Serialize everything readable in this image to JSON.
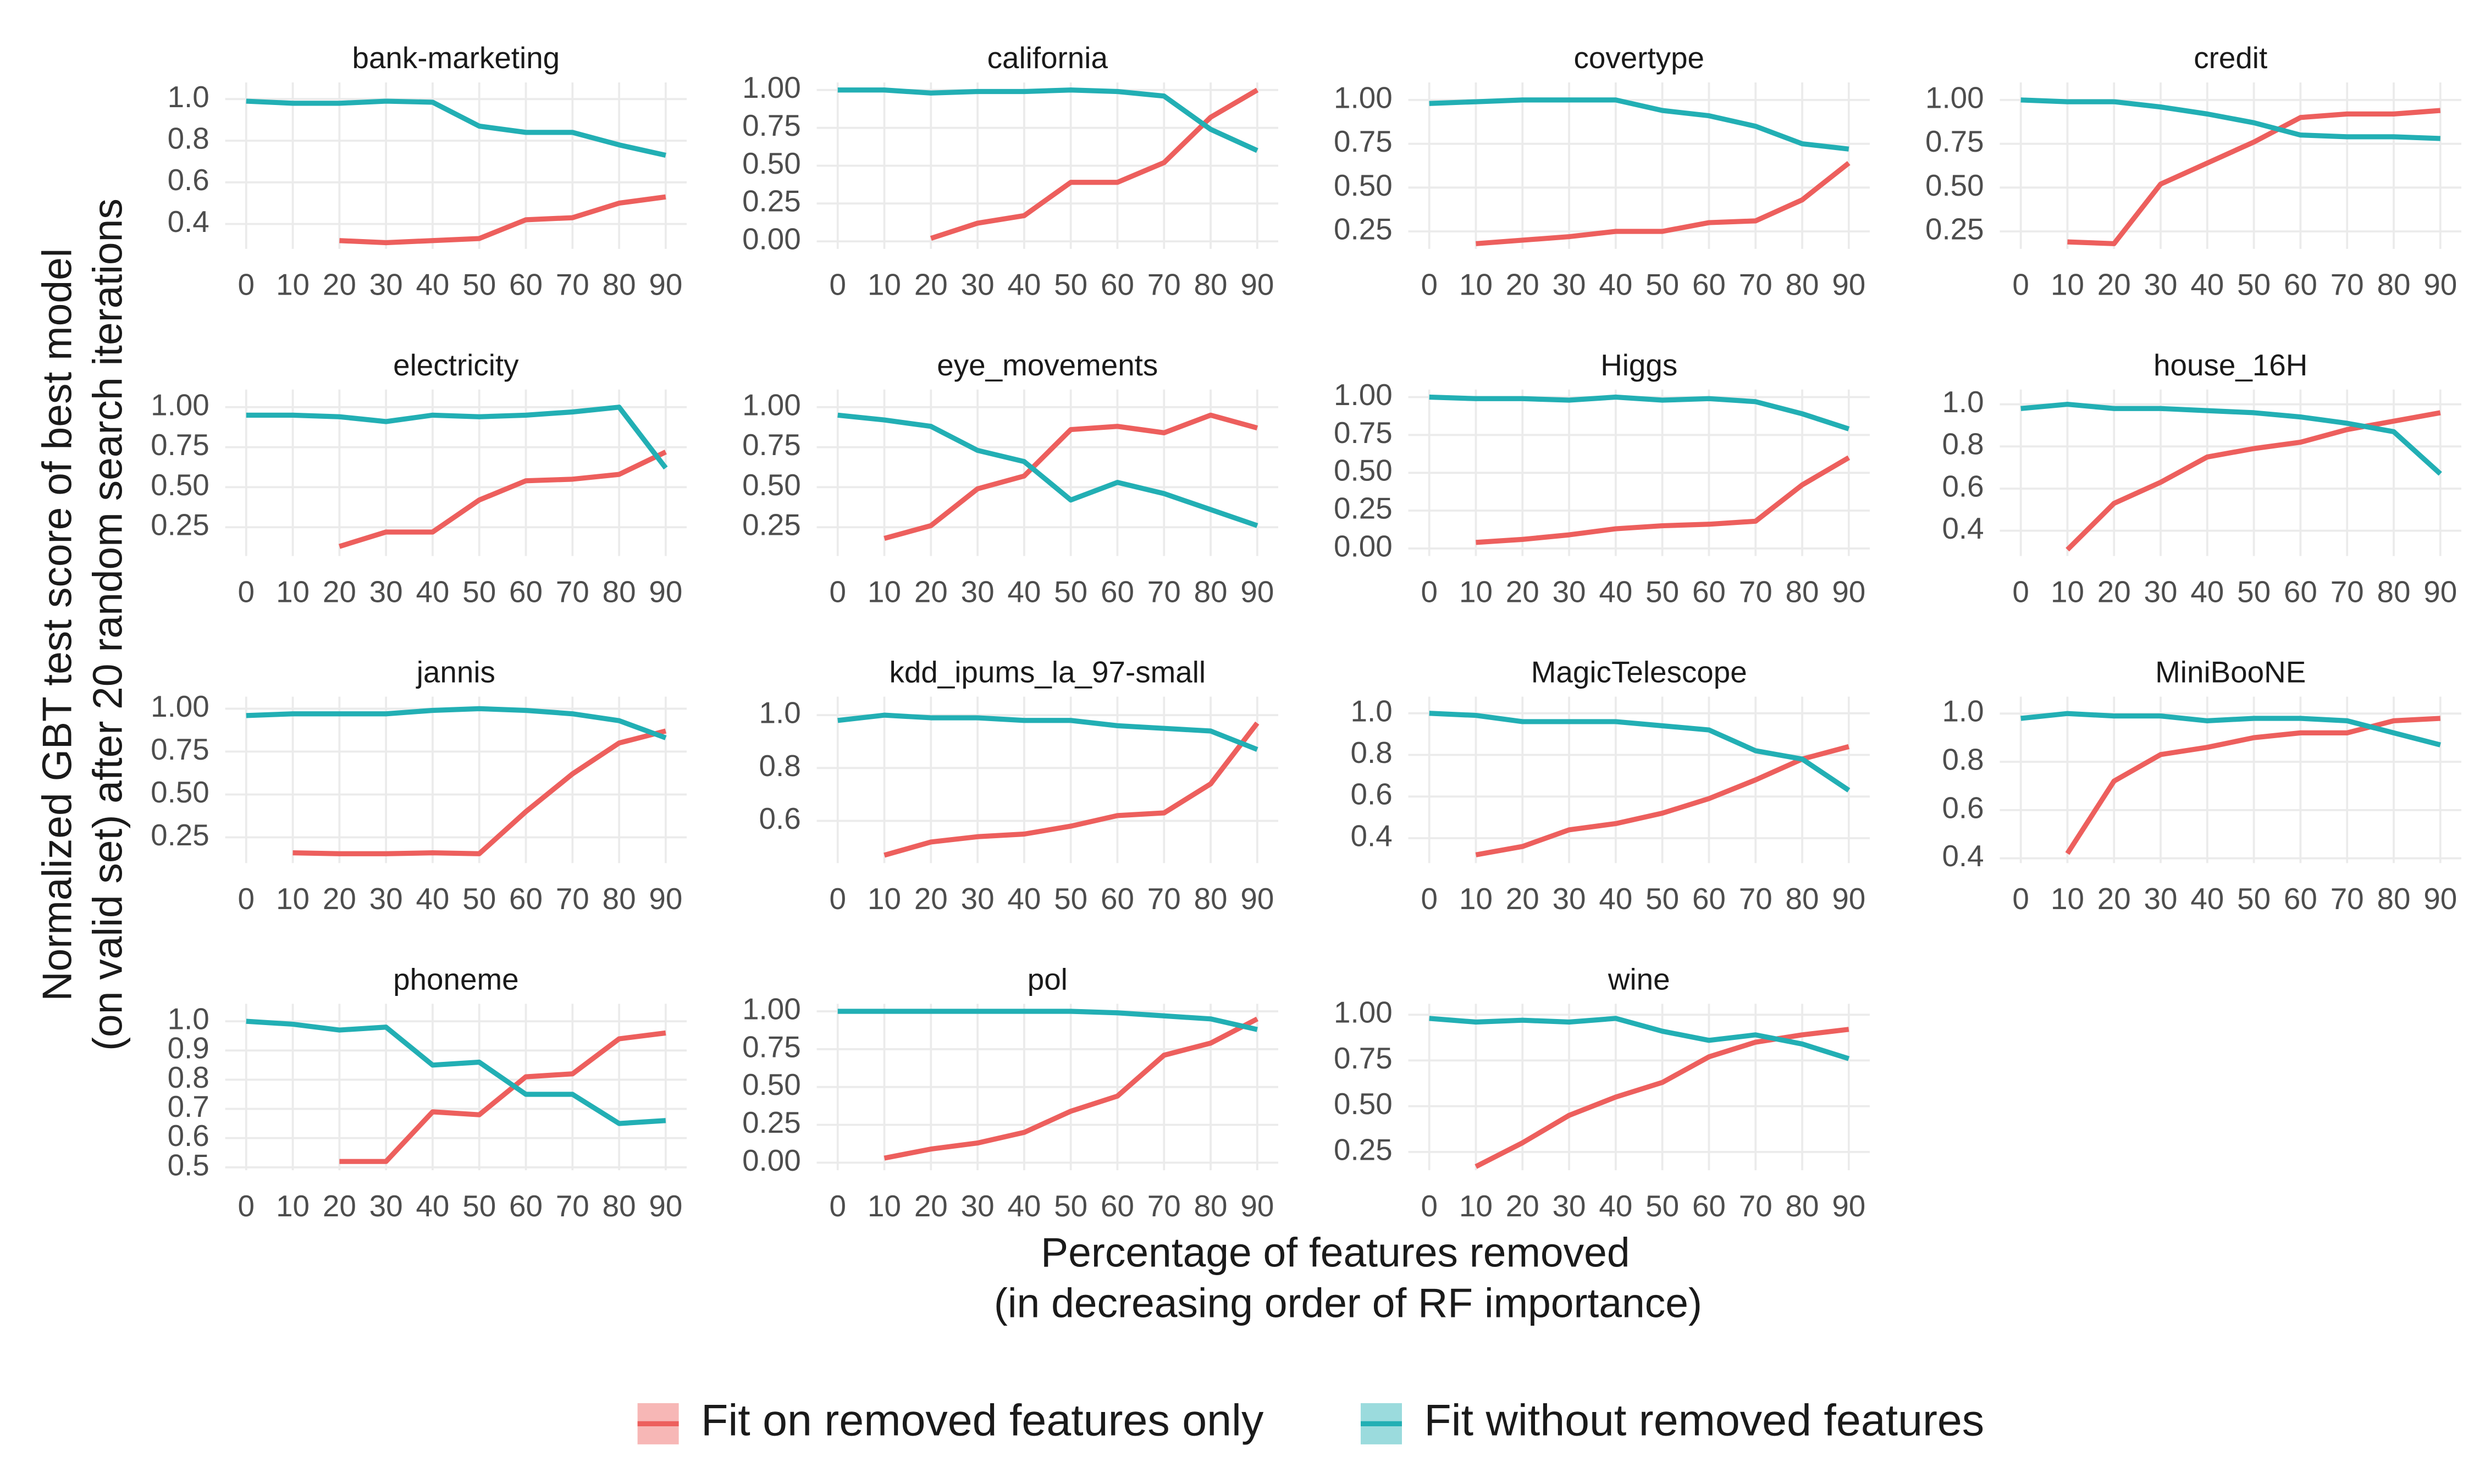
{
  "ylabel": [
    "Normalized GBT test score of best model",
    "(on valid set) after 20 random search iterations"
  ],
  "xlabel": [
    "Percentage of features removed",
    "(in decreasing order of RF importance)"
  ],
  "chart_data": [
    {
      "type": "line",
      "title": "bank-marketing",
      "x": [
        0,
        10,
        20,
        30,
        40,
        50,
        60,
        70,
        80,
        90
      ],
      "xlim": [
        -4.5,
        94.5
      ],
      "xticks": [
        0,
        10,
        20,
        30,
        40,
        50,
        60,
        70,
        80,
        90
      ],
      "ylim": [
        0.28,
        1.08
      ],
      "yticks": [
        0.4,
        0.6,
        0.8,
        {
          "value": 1.0,
          "label": "1.0"
        }
      ],
      "series": [
        {
          "name": "Fit on removed features only",
          "color": "#ED5F5D",
          "values": [
            null,
            null,
            0.32,
            0.31,
            0.32,
            0.33,
            0.42,
            0.43,
            0.5,
            0.53
          ]
        },
        {
          "name": "Fit without removed features",
          "color": "#22AFB4",
          "values": [
            0.99,
            0.98,
            0.98,
            0.99,
            0.985,
            0.87,
            0.84,
            0.84,
            0.78,
            0.73
          ]
        }
      ]
    },
    {
      "type": "line",
      "title": "california",
      "x": [
        0,
        10,
        20,
        30,
        40,
        50,
        60,
        70,
        80,
        90
      ],
      "xlim": [
        -4.5,
        94.5
      ],
      "xticks": [
        0,
        10,
        20,
        30,
        40,
        50,
        60,
        70,
        80,
        90
      ],
      "ylim": [
        -0.05,
        1.05
      ],
      "yticks": [
        {
          "value": 0,
          "label": "0.00"
        },
        0.25,
        {
          "value": 0.5,
          "label": "0.50"
        },
        0.75,
        {
          "value": 1,
          "label": "1.00"
        }
      ],
      "series": [
        {
          "name": "Fit on removed features only",
          "color": "#ED5F5D",
          "values": [
            null,
            null,
            0.02,
            0.12,
            0.17,
            0.39,
            0.39,
            0.52,
            0.82,
            1.0
          ]
        },
        {
          "name": "Fit without removed features",
          "color": "#22AFB4",
          "values": [
            1.0,
            1.0,
            0.98,
            0.99,
            0.99,
            1.0,
            0.99,
            0.96,
            0.74,
            0.6
          ]
        }
      ]
    },
    {
      "type": "line",
      "title": "covertype",
      "x": [
        0,
        10,
        20,
        30,
        40,
        50,
        60,
        70,
        80,
        90
      ],
      "xlim": [
        -4.5,
        94.5
      ],
      "xticks": [
        0,
        10,
        20,
        30,
        40,
        50,
        60,
        70,
        80,
        90
      ],
      "ylim": [
        0.15,
        1.1
      ],
      "yticks": [
        0.25,
        {
          "value": 0.5,
          "label": "0.50"
        },
        0.75,
        {
          "value": 1,
          "label": "1.00"
        }
      ],
      "series": [
        {
          "name": "Fit on removed features only",
          "color": "#ED5F5D",
          "values": [
            null,
            0.18,
            0.2,
            0.22,
            0.25,
            0.25,
            0.3,
            0.31,
            0.43,
            0.64
          ]
        },
        {
          "name": "Fit without removed features",
          "color": "#22AFB4",
          "values": [
            0.98,
            0.99,
            1.0,
            1.0,
            1.0,
            0.94,
            0.91,
            0.85,
            0.75,
            0.72
          ]
        }
      ]
    },
    {
      "type": "line",
      "title": "credit",
      "x": [
        0,
        10,
        20,
        30,
        40,
        50,
        60,
        70,
        80,
        90
      ],
      "xlim": [
        -4.5,
        94.5
      ],
      "xticks": [
        0,
        10,
        20,
        30,
        40,
        50,
        60,
        70,
        80,
        90
      ],
      "ylim": [
        0.15,
        1.1
      ],
      "yticks": [
        0.25,
        {
          "value": 0.5,
          "label": "0.50"
        },
        0.75,
        {
          "value": 1,
          "label": "1.00"
        }
      ],
      "series": [
        {
          "name": "Fit on removed features only",
          "color": "#ED5F5D",
          "values": [
            null,
            0.19,
            0.18,
            0.52,
            0.64,
            0.76,
            0.9,
            0.92,
            0.92,
            0.94
          ]
        },
        {
          "name": "Fit without removed features",
          "color": "#22AFB4",
          "values": [
            1.0,
            0.99,
            0.99,
            0.96,
            0.92,
            0.87,
            0.8,
            0.79,
            0.79,
            0.78
          ]
        }
      ]
    },
    {
      "type": "line",
      "title": "electricity",
      "x": [
        0,
        10,
        20,
        30,
        40,
        50,
        60,
        70,
        80,
        90
      ],
      "xlim": [
        -4.5,
        94.5
      ],
      "xticks": [
        0,
        10,
        20,
        30,
        40,
        50,
        60,
        70,
        80,
        90
      ],
      "ylim": [
        0.07,
        1.11
      ],
      "yticks": [
        0.25,
        {
          "value": 0.5,
          "label": "0.50"
        },
        0.75,
        {
          "value": 1,
          "label": "1.00"
        }
      ],
      "series": [
        {
          "name": "Fit on removed features only",
          "color": "#ED5F5D",
          "values": [
            null,
            null,
            0.13,
            0.22,
            0.22,
            0.42,
            0.54,
            0.55,
            0.58,
            0.72
          ]
        },
        {
          "name": "Fit without removed features",
          "color": "#22AFB4",
          "values": [
            0.95,
            0.95,
            0.94,
            0.91,
            0.95,
            0.94,
            0.95,
            0.97,
            1.0,
            0.62
          ]
        }
      ]
    },
    {
      "type": "line",
      "title": "eye_movements",
      "x": [
        0,
        10,
        20,
        30,
        40,
        50,
        60,
        70,
        80,
        90
      ],
      "xlim": [
        -4.5,
        94.5
      ],
      "xticks": [
        0,
        10,
        20,
        30,
        40,
        50,
        60,
        70,
        80,
        90
      ],
      "ylim": [
        0.07,
        1.11
      ],
      "yticks": [
        0.25,
        {
          "value": 0.5,
          "label": "0.50"
        },
        0.75,
        {
          "value": 1,
          "label": "1.00"
        }
      ],
      "series": [
        {
          "name": "Fit on removed features only",
          "color": "#ED5F5D",
          "values": [
            null,
            0.18,
            0.26,
            0.49,
            0.57,
            0.86,
            0.88,
            0.84,
            0.95,
            0.87
          ]
        },
        {
          "name": "Fit without removed features",
          "color": "#22AFB4",
          "values": [
            0.95,
            0.92,
            0.88,
            0.73,
            0.66,
            0.42,
            0.53,
            0.46,
            0.36,
            0.26
          ]
        }
      ]
    },
    {
      "type": "line",
      "title": "Higgs",
      "x": [
        0,
        10,
        20,
        30,
        40,
        50,
        60,
        70,
        80,
        90
      ],
      "xlim": [
        -4.5,
        94.5
      ],
      "xticks": [
        0,
        10,
        20,
        30,
        40,
        50,
        60,
        70,
        80,
        90
      ],
      "ylim": [
        -0.05,
        1.05
      ],
      "yticks": [
        {
          "value": 0,
          "label": "0.00"
        },
        0.25,
        {
          "value": 0.5,
          "label": "0.50"
        },
        0.75,
        {
          "value": 1,
          "label": "1.00"
        }
      ],
      "series": [
        {
          "name": "Fit on removed features only",
          "color": "#ED5F5D",
          "values": [
            null,
            0.04,
            0.06,
            0.09,
            0.13,
            0.15,
            0.16,
            0.18,
            0.42,
            0.6
          ]
        },
        {
          "name": "Fit without removed features",
          "color": "#22AFB4",
          "values": [
            1.0,
            0.99,
            0.99,
            0.98,
            1.0,
            0.98,
            0.99,
            0.97,
            0.89,
            0.79
          ]
        }
      ]
    },
    {
      "type": "line",
      "title": "house_16H",
      "x": [
        0,
        10,
        20,
        30,
        40,
        50,
        60,
        70,
        80,
        90
      ],
      "xlim": [
        -4.5,
        94.5
      ],
      "xticks": [
        0,
        10,
        20,
        30,
        40,
        50,
        60,
        70,
        80,
        90
      ],
      "ylim": [
        0.28,
        1.07
      ],
      "yticks": [
        0.4,
        0.6,
        0.8,
        {
          "value": 1.0,
          "label": "1.0"
        }
      ],
      "series": [
        {
          "name": "Fit on removed features only",
          "color": "#ED5F5D",
          "values": [
            null,
            0.31,
            0.53,
            0.63,
            0.75,
            0.79,
            0.82,
            0.88,
            0.92,
            0.96
          ]
        },
        {
          "name": "Fit without removed features",
          "color": "#22AFB4",
          "values": [
            0.98,
            1.0,
            0.98,
            0.98,
            0.97,
            0.96,
            0.94,
            0.91,
            0.87,
            0.67
          ]
        }
      ]
    },
    {
      "type": "line",
      "title": "jannis",
      "x": [
        0,
        10,
        20,
        30,
        40,
        50,
        60,
        70,
        80,
        90
      ],
      "xlim": [
        -4.5,
        94.5
      ],
      "xticks": [
        0,
        10,
        20,
        30,
        40,
        50,
        60,
        70,
        80,
        90
      ],
      "ylim": [
        0.1,
        1.07
      ],
      "yticks": [
        0.25,
        {
          "value": 0.5,
          "label": "0.50"
        },
        0.75,
        {
          "value": 1,
          "label": "1.00"
        }
      ],
      "series": [
        {
          "name": "Fit on removed features only",
          "color": "#ED5F5D",
          "values": [
            null,
            0.16,
            0.155,
            0.155,
            0.16,
            0.155,
            0.4,
            0.62,
            0.8,
            0.87
          ]
        },
        {
          "name": "Fit without removed features",
          "color": "#22AFB4",
          "values": [
            0.96,
            0.97,
            0.97,
            0.97,
            0.99,
            1.0,
            0.99,
            0.97,
            0.93,
            0.83
          ]
        }
      ]
    },
    {
      "type": "line",
      "title": "kdd_ipums_la_97-small",
      "x": [
        0,
        10,
        20,
        30,
        40,
        50,
        60,
        70,
        80,
        90
      ],
      "xlim": [
        -4.5,
        94.5
      ],
      "xticks": [
        0,
        10,
        20,
        30,
        40,
        50,
        60,
        70,
        80,
        90
      ],
      "ylim": [
        0.44,
        1.07
      ],
      "yticks": [
        0.6,
        0.8,
        {
          "value": 1.0,
          "label": "1.0"
        }
      ],
      "series": [
        {
          "name": "Fit on removed features only",
          "color": "#ED5F5D",
          "values": [
            null,
            0.47,
            0.52,
            0.54,
            0.55,
            0.58,
            0.62,
            0.63,
            0.74,
            0.97
          ]
        },
        {
          "name": "Fit without removed features",
          "color": "#22AFB4",
          "values": [
            0.98,
            1.0,
            0.99,
            0.99,
            0.98,
            0.98,
            0.96,
            0.95,
            0.94,
            0.87
          ]
        }
      ]
    },
    {
      "type": "line",
      "title": "MagicTelescope",
      "x": [
        0,
        10,
        20,
        30,
        40,
        50,
        60,
        70,
        80,
        90
      ],
      "xlim": [
        -4.5,
        94.5
      ],
      "xticks": [
        0,
        10,
        20,
        30,
        40,
        50,
        60,
        70,
        80,
        90
      ],
      "ylim": [
        0.28,
        1.08
      ],
      "yticks": [
        0.4,
        0.6,
        0.8,
        {
          "value": 1.0,
          "label": "1.0"
        }
      ],
      "series": [
        {
          "name": "Fit on removed features only",
          "color": "#ED5F5D",
          "values": [
            null,
            0.32,
            0.36,
            0.44,
            0.47,
            0.52,
            0.59,
            0.68,
            0.78,
            0.84
          ]
        },
        {
          "name": "Fit without removed features",
          "color": "#22AFB4",
          "values": [
            1.0,
            0.99,
            0.96,
            0.96,
            0.96,
            0.94,
            0.92,
            0.82,
            0.78,
            0.63
          ]
        }
      ]
    },
    {
      "type": "line",
      "title": "MiniBooNE",
      "x": [
        0,
        10,
        20,
        30,
        40,
        50,
        60,
        70,
        80,
        90
      ],
      "xlim": [
        -4.5,
        94.5
      ],
      "xticks": [
        0,
        10,
        20,
        30,
        40,
        50,
        60,
        70,
        80,
        90
      ],
      "ylim": [
        0.38,
        1.07
      ],
      "yticks": [
        0.4,
        0.6,
        0.8,
        {
          "value": 1.0,
          "label": "1.0"
        }
      ],
      "series": [
        {
          "name": "Fit on removed features only",
          "color": "#ED5F5D",
          "values": [
            null,
            0.42,
            0.72,
            0.83,
            0.86,
            0.9,
            0.92,
            0.92,
            0.97,
            0.98
          ]
        },
        {
          "name": "Fit without removed features",
          "color": "#22AFB4",
          "values": [
            0.98,
            1.0,
            0.99,
            0.99,
            0.97,
            0.98,
            0.98,
            0.97,
            0.92,
            0.87
          ]
        }
      ]
    },
    {
      "type": "line",
      "title": "phoneme",
      "x": [
        0,
        10,
        20,
        30,
        40,
        50,
        60,
        70,
        80,
        90
      ],
      "xlim": [
        -4.5,
        94.5
      ],
      "xticks": [
        0,
        10,
        20,
        30,
        40,
        50,
        60,
        70,
        80,
        90
      ],
      "ylim": [
        0.49,
        1.06
      ],
      "yticks": [
        0.5,
        0.6,
        0.7,
        0.8,
        0.9,
        {
          "value": 1.0,
          "label": "1.0"
        }
      ],
      "series": [
        {
          "name": "Fit on removed features only",
          "color": "#ED5F5D",
          "values": [
            null,
            null,
            0.52,
            0.52,
            0.69,
            0.68,
            0.81,
            0.82,
            0.94,
            0.96
          ]
        },
        {
          "name": "Fit without removed features",
          "color": "#22AFB4",
          "values": [
            1.0,
            0.99,
            0.97,
            0.98,
            0.85,
            0.86,
            0.75,
            0.75,
            0.65,
            0.66
          ]
        }
      ]
    },
    {
      "type": "line",
      "title": "pol",
      "x": [
        0,
        10,
        20,
        30,
        40,
        50,
        60,
        70,
        80,
        90
      ],
      "xlim": [
        -4.5,
        94.5
      ],
      "xticks": [
        0,
        10,
        20,
        30,
        40,
        50,
        60,
        70,
        80,
        90
      ],
      "ylim": [
        -0.05,
        1.05
      ],
      "yticks": [
        {
          "value": 0,
          "label": "0.00"
        },
        0.25,
        {
          "value": 0.5,
          "label": "0.50"
        },
        0.75,
        {
          "value": 1,
          "label": "1.00"
        }
      ],
      "series": [
        {
          "name": "Fit on removed features only",
          "color": "#ED5F5D",
          "values": [
            null,
            0.03,
            0.09,
            0.13,
            0.2,
            0.34,
            0.44,
            0.71,
            0.79,
            0.95
          ]
        },
        {
          "name": "Fit without removed features",
          "color": "#22AFB4",
          "values": [
            1.0,
            1.0,
            1.0,
            1.0,
            1.0,
            1.0,
            0.99,
            0.97,
            0.95,
            0.88
          ]
        }
      ]
    },
    {
      "type": "line",
      "title": "wine",
      "x": [
        0,
        10,
        20,
        30,
        40,
        50,
        60,
        70,
        80,
        90
      ],
      "xlim": [
        -4.5,
        94.5
      ],
      "xticks": [
        0,
        10,
        20,
        30,
        40,
        50,
        60,
        70,
        80,
        90
      ],
      "ylim": [
        0.15,
        1.06
      ],
      "yticks": [
        0.25,
        {
          "value": 0.5,
          "label": "0.50"
        },
        0.75,
        {
          "value": 1,
          "label": "1.00"
        }
      ],
      "series": [
        {
          "name": "Fit on removed features only",
          "color": "#ED5F5D",
          "values": [
            null,
            0.17,
            0.3,
            0.45,
            0.55,
            0.63,
            0.77,
            0.85,
            0.89,
            0.92
          ]
        },
        {
          "name": "Fit without removed features",
          "color": "#22AFB4",
          "values": [
            0.98,
            0.96,
            0.97,
            0.96,
            0.98,
            0.91,
            0.86,
            0.89,
            0.84,
            0.76
          ]
        }
      ]
    }
  ]
}
